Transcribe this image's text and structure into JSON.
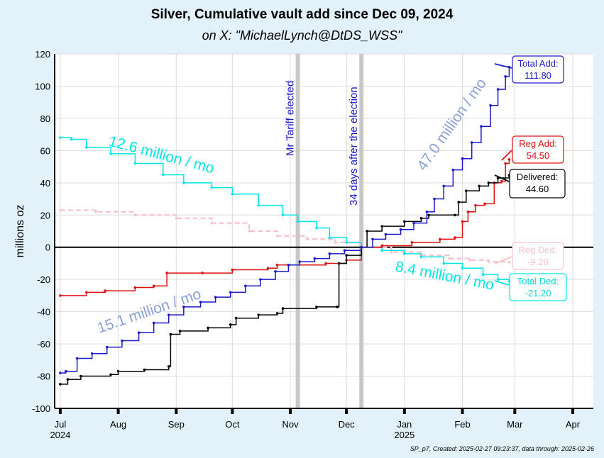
{
  "header": {
    "title": "Silver, Cumulative vault add since Dec 09, 2024",
    "subtitle": "on X:   \"MichaelLynch@DtDS_WSS\""
  },
  "footer": "SP_p7, Created: 2025-02-27 09:23:37, data through: 2025-02-26",
  "chart_data": {
    "type": "line",
    "ylabel": "millions oz",
    "ylim": [
      -100,
      120
    ],
    "yticks": [
      -100,
      -80,
      -60,
      -40,
      -20,
      0,
      20,
      40,
      60,
      80,
      100,
      120
    ],
    "xlim": [
      "2024-06-28",
      "2025-04-12"
    ],
    "xticks": [
      {
        "date": "2024-07-01",
        "label": "Jul",
        "year": "2024"
      },
      {
        "date": "2024-08-01",
        "label": "Aug",
        "year": ""
      },
      {
        "date": "2024-09-01",
        "label": "Sep",
        "year": ""
      },
      {
        "date": "2024-10-01",
        "label": "Oct",
        "year": ""
      },
      {
        "date": "2024-11-01",
        "label": "Nov",
        "year": ""
      },
      {
        "date": "2024-12-01",
        "label": "Dec",
        "year": ""
      },
      {
        "date": "2025-01-01",
        "label": "Jan",
        "year": "2025"
      },
      {
        "date": "2025-02-01",
        "label": "Feb",
        "year": ""
      },
      {
        "date": "2025-03-01",
        "label": "Mar",
        "year": ""
      },
      {
        "date": "2025-04-01",
        "label": "Apr",
        "year": ""
      }
    ],
    "grid": true,
    "vlines": [
      {
        "date": "2024-11-05",
        "label": "Mr Tariff elected"
      },
      {
        "date": "2024-12-09",
        "label": "34 days after the election"
      }
    ],
    "series": [
      {
        "name": "Total Add",
        "color": "#1a1acc",
        "label": "Total Add:",
        "value_label": "111.80",
        "points": [
          [
            "2024-07-01",
            -78
          ],
          [
            "2024-07-04",
            -77
          ],
          [
            "2024-07-10",
            -69
          ],
          [
            "2024-07-18",
            -66
          ],
          [
            "2024-07-26",
            -62
          ],
          [
            "2024-08-03",
            -58
          ],
          [
            "2024-08-12",
            -53
          ],
          [
            "2024-08-20",
            -47
          ],
          [
            "2024-08-28",
            -42
          ],
          [
            "2024-09-05",
            -37
          ],
          [
            "2024-09-14",
            -34
          ],
          [
            "2024-09-22",
            -31
          ],
          [
            "2024-09-30",
            -28
          ],
          [
            "2024-10-08",
            -24
          ],
          [
            "2024-10-16",
            -20
          ],
          [
            "2024-10-24",
            -15
          ],
          [
            "2024-10-31",
            -11
          ],
          [
            "2024-11-06",
            -9
          ],
          [
            "2024-11-14",
            -7
          ],
          [
            "2024-11-22",
            -4
          ],
          [
            "2024-11-30",
            -2
          ],
          [
            "2024-12-09",
            0
          ],
          [
            "2024-12-15",
            5
          ],
          [
            "2024-12-22",
            8
          ],
          [
            "2024-12-30",
            11
          ],
          [
            "2025-01-06",
            15
          ],
          [
            "2025-01-13",
            22
          ],
          [
            "2025-01-17",
            30
          ],
          [
            "2025-01-22",
            38
          ],
          [
            "2025-01-27",
            48
          ],
          [
            "2025-02-01",
            55
          ],
          [
            "2025-02-06",
            65
          ],
          [
            "2025-02-11",
            75
          ],
          [
            "2025-02-16",
            88
          ],
          [
            "2025-02-20",
            98
          ],
          [
            "2025-02-24",
            106
          ],
          [
            "2025-02-26",
            111.8
          ]
        ]
      },
      {
        "name": "Reg Add",
        "color": "#e01010",
        "label": "Reg Add:",
        "value_label": "54.50",
        "points": [
          [
            "2024-07-01",
            -30
          ],
          [
            "2024-07-15",
            -28
          ],
          [
            "2024-07-25",
            -27
          ],
          [
            "2024-08-10",
            -25
          ],
          [
            "2024-08-20",
            -24
          ],
          [
            "2024-08-27",
            -16
          ],
          [
            "2024-09-15",
            -16
          ],
          [
            "2024-10-01",
            -14
          ],
          [
            "2024-10-20",
            -13
          ],
          [
            "2024-10-25",
            -11
          ],
          [
            "2024-11-20",
            -10
          ],
          [
            "2024-12-01",
            -8
          ],
          [
            "2024-12-09",
            0
          ],
          [
            "2024-12-20",
            1
          ],
          [
            "2025-01-05",
            3
          ],
          [
            "2025-01-20",
            5
          ],
          [
            "2025-01-28",
            6
          ],
          [
            "2025-02-01",
            16
          ],
          [
            "2025-02-04",
            22
          ],
          [
            "2025-02-08",
            26
          ],
          [
            "2025-02-13",
            27
          ],
          [
            "2025-02-18",
            40
          ],
          [
            "2025-02-22",
            41
          ],
          [
            "2025-02-24",
            52
          ],
          [
            "2025-02-26",
            54.5
          ]
        ]
      },
      {
        "name": "Delivered",
        "color": "#000000",
        "label": "Delivered:",
        "value_label": "44.60",
        "points": [
          [
            "2024-07-01",
            -85
          ],
          [
            "2024-07-05",
            -82
          ],
          [
            "2024-07-12",
            -80
          ],
          [
            "2024-07-28",
            -79
          ],
          [
            "2024-08-01",
            -77
          ],
          [
            "2024-08-15",
            -76
          ],
          [
            "2024-08-28",
            -74
          ],
          [
            "2024-08-29",
            -54
          ],
          [
            "2024-09-03",
            -52
          ],
          [
            "2024-09-18",
            -50
          ],
          [
            "2024-09-30",
            -48
          ],
          [
            "2024-10-03",
            -44
          ],
          [
            "2024-10-15",
            -42
          ],
          [
            "2024-10-25",
            -41
          ],
          [
            "2024-10-28",
            -38
          ],
          [
            "2024-11-15",
            -37
          ],
          [
            "2024-11-26",
            -37
          ],
          [
            "2024-11-27",
            -10
          ],
          [
            "2024-12-01",
            -5
          ],
          [
            "2024-12-09",
            0
          ],
          [
            "2024-12-12",
            10
          ],
          [
            "2024-12-20",
            13
          ],
          [
            "2025-01-01",
            16
          ],
          [
            "2025-01-10",
            18
          ],
          [
            "2025-01-14",
            20
          ],
          [
            "2025-01-28",
            20
          ],
          [
            "2025-01-30",
            28
          ],
          [
            "2025-02-03",
            35
          ],
          [
            "2025-02-10",
            38
          ],
          [
            "2025-02-15",
            40
          ],
          [
            "2025-02-20",
            43
          ],
          [
            "2025-02-26",
            44.6
          ]
        ]
      },
      {
        "name": "Reg Ded",
        "color": "#f6c3cb",
        "label": "Reg Ded:",
        "value_label": "-9.20",
        "points": [
          [
            "2024-07-01",
            23
          ],
          [
            "2024-07-20",
            22
          ],
          [
            "2024-08-10",
            20
          ],
          [
            "2024-09-01",
            18
          ],
          [
            "2024-09-20",
            15
          ],
          [
            "2024-10-10",
            10
          ],
          [
            "2024-10-25",
            7
          ],
          [
            "2024-11-10",
            5
          ],
          [
            "2024-11-25",
            3
          ],
          [
            "2024-12-09",
            0
          ],
          [
            "2024-12-25",
            -3
          ],
          [
            "2025-01-10",
            -5
          ],
          [
            "2025-01-25",
            -7
          ],
          [
            "2025-02-05",
            -8
          ],
          [
            "2025-02-15",
            -9
          ],
          [
            "2025-02-26",
            -9.2
          ]
        ]
      },
      {
        "name": "Total Ded",
        "color": "#00e6e6",
        "label": "Total Ded:",
        "value_label": "-21.20",
        "points": [
          [
            "2024-07-01",
            68
          ],
          [
            "2024-07-07",
            67
          ],
          [
            "2024-07-15",
            62
          ],
          [
            "2024-07-28",
            58
          ],
          [
            "2024-08-10",
            52
          ],
          [
            "2024-08-25",
            45
          ],
          [
            "2024-09-05",
            40
          ],
          [
            "2024-09-20",
            37
          ],
          [
            "2024-10-01",
            33
          ],
          [
            "2024-10-15",
            26
          ],
          [
            "2024-10-28",
            20
          ],
          [
            "2024-11-05",
            16
          ],
          [
            "2024-11-15",
            12
          ],
          [
            "2024-11-22",
            6
          ],
          [
            "2024-12-01",
            3
          ],
          [
            "2024-12-09",
            0
          ],
          [
            "2024-12-20",
            -2
          ],
          [
            "2025-01-01",
            -4
          ],
          [
            "2025-01-10",
            -6
          ],
          [
            "2025-01-22",
            -10
          ],
          [
            "2025-02-01",
            -13
          ],
          [
            "2025-02-12",
            -17
          ],
          [
            "2025-02-20",
            -20
          ],
          [
            "2025-02-26",
            -21.2
          ]
        ]
      }
    ],
    "annotations": [
      {
        "text": "12.6 million / mo",
        "color": "#00e6e6"
      },
      {
        "text": "15.1 million / mo",
        "color": "#8aa0d8"
      },
      {
        "text": "47.0 million / mo",
        "color": "#8aa0d8"
      },
      {
        "text": "8.4 million / mo",
        "color": "#00e6e6"
      }
    ]
  }
}
